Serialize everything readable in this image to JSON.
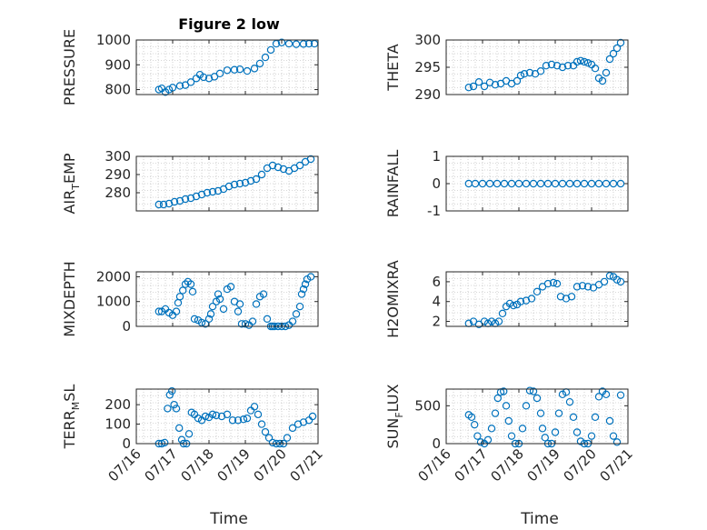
{
  "figure": {
    "title": "Figure 2 low",
    "xlabel": "Time",
    "x_tick_labels": [
      "07/16",
      "07/17",
      "07/18",
      "07/19",
      "07/20",
      "07/21"
    ],
    "marker": "circle",
    "marker_color": "#0072BD",
    "grid": "minor dotted",
    "axes_color": "#262626"
  },
  "chart_data": [
    {
      "type": "scatter",
      "title": "Figure 2 low",
      "xlabel": "",
      "ylabel": "PRESSURE",
      "ylim": [
        780,
        1000
      ],
      "yticks": [
        800,
        900,
        1000
      ],
      "xlim": [
        0,
        5
      ],
      "x": [
        0.62,
        0.7,
        0.8,
        0.9,
        1.0,
        1.2,
        1.35,
        1.5,
        1.65,
        1.75,
        1.85,
        2.0,
        2.15,
        2.3,
        2.5,
        2.7,
        2.85,
        3.05,
        3.25,
        3.4,
        3.55,
        3.7,
        3.85,
        4.0,
        4.2,
        4.4,
        4.6,
        4.75,
        4.9
      ],
      "y": [
        800,
        805,
        790,
        800,
        808,
        815,
        818,
        830,
        845,
        860,
        850,
        845,
        852,
        865,
        878,
        880,
        882,
        875,
        885,
        905,
        930,
        960,
        985,
        990,
        985,
        983,
        984,
        985,
        985
      ]
    },
    {
      "type": "scatter",
      "xlabel": "",
      "ylabel": "THETA",
      "ylim": [
        290,
        300
      ],
      "yticks": [
        290,
        295,
        300
      ],
      "xlim": [
        0,
        5
      ],
      "x": [
        0.62,
        0.75,
        0.9,
        1.05,
        1.2,
        1.35,
        1.5,
        1.65,
        1.8,
        1.95,
        2.05,
        2.15,
        2.3,
        2.45,
        2.6,
        2.75,
        2.9,
        3.05,
        3.2,
        3.35,
        3.5,
        3.6,
        3.7,
        3.8,
        3.9,
        4.0,
        4.1,
        4.2,
        4.3,
        4.4,
        4.5,
        4.6,
        4.7,
        4.8
      ],
      "y": [
        291.3,
        291.5,
        292.3,
        291.5,
        292.2,
        291.8,
        292.0,
        292.5,
        292.0,
        292.5,
        293.5,
        293.8,
        294.0,
        293.8,
        294.3,
        295.3,
        295.5,
        295.3,
        295.0,
        295.3,
        295.3,
        296.0,
        296.2,
        296.0,
        295.8,
        295.5,
        294.8,
        293.0,
        292.5,
        294.0,
        296.5,
        297.5,
        298.5,
        299.5
      ]
    },
    {
      "type": "scatter",
      "xlabel": "",
      "ylabel": "AIR_TEMP",
      "ylim": [
        270,
        300
      ],
      "yticks": [
        280,
        290,
        300
      ],
      "xlim": [
        0,
        5
      ],
      "x": [
        0.62,
        0.75,
        0.9,
        1.05,
        1.2,
        1.35,
        1.5,
        1.65,
        1.8,
        1.95,
        2.1,
        2.25,
        2.4,
        2.55,
        2.7,
        2.85,
        3.0,
        3.15,
        3.3,
        3.45,
        3.6,
        3.75,
        3.9,
        4.05,
        4.2,
        4.35,
        4.5,
        4.65,
        4.8
      ],
      "y": [
        273.5,
        273.5,
        274,
        275,
        275.5,
        276.5,
        277,
        278,
        279,
        280,
        280.5,
        281,
        282,
        283.5,
        284.5,
        285,
        285.5,
        286.5,
        287.5,
        290,
        293.5,
        295,
        294,
        293,
        292,
        293.5,
        295,
        297,
        298.5
      ]
    },
    {
      "type": "scatter",
      "xlabel": "",
      "ylabel": "RAINFALL",
      "ylim": [
        -1,
        1
      ],
      "yticks": [
        -1,
        0,
        1
      ],
      "xlim": [
        0,
        5
      ],
      "x": [
        0.62,
        0.8,
        1.0,
        1.2,
        1.4,
        1.6,
        1.8,
        2.0,
        2.2,
        2.4,
        2.6,
        2.8,
        3.0,
        3.2,
        3.4,
        3.6,
        3.8,
        4.0,
        4.2,
        4.4,
        4.6,
        4.8
      ],
      "y": [
        0,
        0,
        0,
        0,
        0,
        0,
        0,
        0,
        0,
        0,
        0,
        0,
        0,
        0,
        0,
        0,
        0,
        0,
        0,
        0,
        0,
        0
      ]
    },
    {
      "type": "scatter",
      "xlabel": "",
      "ylabel": "MIXDEPTH",
      "ylim": [
        0,
        2200
      ],
      "yticks": [
        0,
        1000,
        2000
      ],
      "xlim": [
        0,
        5
      ],
      "x": [
        0.62,
        0.7,
        0.8,
        0.9,
        1.0,
        1.1,
        1.15,
        1.2,
        1.28,
        1.35,
        1.42,
        1.5,
        1.55,
        1.6,
        1.7,
        1.8,
        1.9,
        2.0,
        2.05,
        2.1,
        2.2,
        2.25,
        2.3,
        2.4,
        2.5,
        2.6,
        2.7,
        2.8,
        2.85,
        2.9,
        3.0,
        3.1,
        3.2,
        3.3,
        3.4,
        3.5,
        3.6,
        3.7,
        3.75,
        3.8,
        3.9,
        4.0,
        4.1,
        4.2,
        4.3,
        4.4,
        4.5,
        4.55,
        4.6,
        4.65,
        4.7,
        4.8
      ],
      "y": [
        600,
        600,
        700,
        550,
        450,
        600,
        950,
        1200,
        1450,
        1700,
        1800,
        1700,
        1400,
        300,
        250,
        150,
        100,
        300,
        500,
        800,
        1000,
        1300,
        1100,
        700,
        1500,
        1600,
        1000,
        600,
        900,
        100,
        100,
        50,
        200,
        900,
        1200,
        1300,
        300,
        0,
        0,
        0,
        0,
        0,
        0,
        50,
        200,
        500,
        800,
        1300,
        1500,
        1700,
        1900,
        2000
      ]
    },
    {
      "type": "scatter",
      "xlabel": "",
      "ylabel": "H2OMIXRA",
      "ylim": [
        1.5,
        7
      ],
      "yticks": [
        2,
        4,
        6
      ],
      "xlim": [
        0,
        5
      ],
      "x": [
        0.62,
        0.75,
        0.9,
        1.05,
        1.15,
        1.25,
        1.35,
        1.45,
        1.55,
        1.65,
        1.75,
        1.85,
        1.95,
        2.05,
        2.2,
        2.35,
        2.5,
        2.65,
        2.8,
        2.95,
        3.05,
        3.15,
        3.3,
        3.45,
        3.6,
        3.75,
        3.9,
        4.05,
        4.2,
        4.35,
        4.5,
        4.6,
        4.7,
        4.8
      ],
      "y": [
        1.8,
        2.0,
        1.7,
        2.0,
        1.8,
        2.0,
        1.8,
        2.0,
        2.8,
        3.5,
        3.8,
        3.6,
        3.7,
        4.0,
        4.1,
        4.3,
        5.0,
        5.5,
        5.8,
        5.9,
        5.8,
        4.5,
        4.3,
        4.5,
        5.5,
        5.6,
        5.5,
        5.4,
        5.7,
        6.0,
        6.6,
        6.5,
        6.2,
        6.0
      ]
    },
    {
      "type": "scatter",
      "xlabel": "",
      "ylabel": "TERR_MSL",
      "ylim": [
        0,
        280
      ],
      "yticks": [
        0,
        100,
        200
      ],
      "xlim": [
        0,
        5
      ],
      "x": [
        0.62,
        0.7,
        0.78,
        0.86,
        0.92,
        0.98,
        1.04,
        1.1,
        1.18,
        1.25,
        1.3,
        1.38,
        1.45,
        1.52,
        1.6,
        1.7,
        1.8,
        1.9,
        2.0,
        2.1,
        2.2,
        2.35,
        2.5,
        2.65,
        2.8,
        2.95,
        3.05,
        3.15,
        3.25,
        3.35,
        3.45,
        3.55,
        3.65,
        3.75,
        3.85,
        3.95,
        4.05,
        4.15,
        4.3,
        4.45,
        4.6,
        4.75,
        4.85
      ],
      "y": [
        0,
        0,
        5,
        180,
        250,
        270,
        200,
        180,
        80,
        20,
        0,
        0,
        50,
        160,
        150,
        130,
        120,
        140,
        135,
        150,
        145,
        140,
        150,
        120,
        120,
        125,
        130,
        170,
        190,
        150,
        100,
        60,
        30,
        5,
        0,
        0,
        0,
        30,
        80,
        100,
        110,
        120,
        140
      ]
    },
    {
      "type": "scatter",
      "xlabel": "",
      "ylabel": "SUN_FLUX",
      "ylim": [
        0,
        720
      ],
      "yticks": [
        0,
        500
      ],
      "xlim": [
        0,
        5
      ],
      "x": [
        0.62,
        0.7,
        0.78,
        0.86,
        0.95,
        1.05,
        1.15,
        1.25,
        1.35,
        1.42,
        1.5,
        1.58,
        1.65,
        1.72,
        1.8,
        1.9,
        2.0,
        2.1,
        2.2,
        2.3,
        2.4,
        2.5,
        2.6,
        2.65,
        2.72,
        2.8,
        2.9,
        3.0,
        3.1,
        3.2,
        3.3,
        3.4,
        3.5,
        3.6,
        3.7,
        3.8,
        3.9,
        4.0,
        4.1,
        4.2,
        4.3,
        4.4,
        4.5,
        4.6,
        4.7,
        4.8
      ],
      "y": [
        380,
        350,
        250,
        100,
        20,
        0,
        50,
        200,
        400,
        600,
        680,
        690,
        500,
        300,
        100,
        0,
        0,
        200,
        500,
        700,
        690,
        600,
        400,
        200,
        80,
        0,
        0,
        150,
        400,
        650,
        680,
        550,
        350,
        150,
        30,
        0,
        0,
        100,
        350,
        620,
        690,
        650,
        300,
        100,
        20,
        640
      ]
    }
  ]
}
